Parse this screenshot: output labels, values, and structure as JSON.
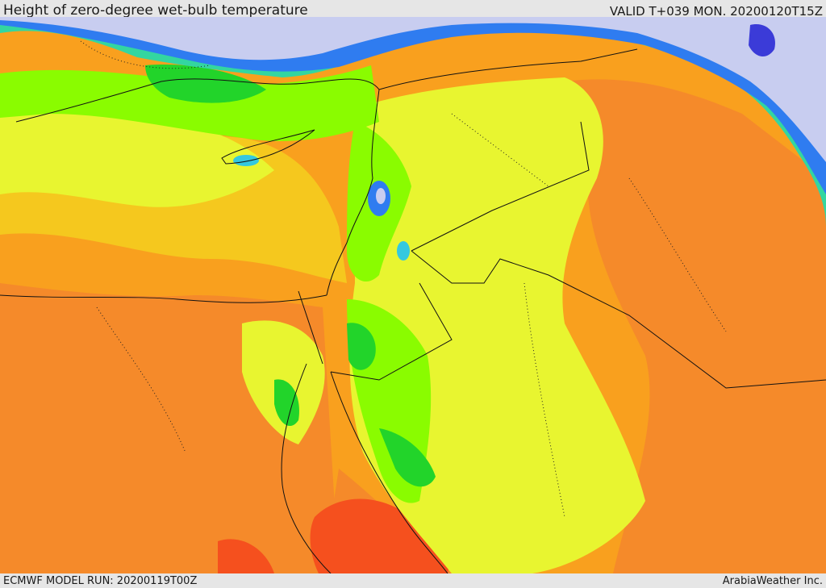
{
  "header": {
    "title": "Height of zero-degree wet-bulb temperature",
    "valid": "VALID T+039 MON. 20200120T15Z"
  },
  "footer": {
    "model_run": "ECMWF MODEL RUN: 20200119T00Z",
    "credit": "ArabiaWeather Inc."
  },
  "palette": {
    "sea_cold": "#c8cdf0",
    "deep_blue": "#3b3bd8",
    "blue": "#2f7cf0",
    "cyan": "#34c8e0",
    "teal": "#33d6a0",
    "green": "#22d42a",
    "lime": "#8afc00",
    "yellow_green": "#e8f530",
    "yellow": "#f5c81e",
    "orange": "#f9a01e",
    "dark_orange": "#f58a2a",
    "red_orange": "#f5501e"
  },
  "map_region": "Eastern Mediterranean and Middle East"
}
